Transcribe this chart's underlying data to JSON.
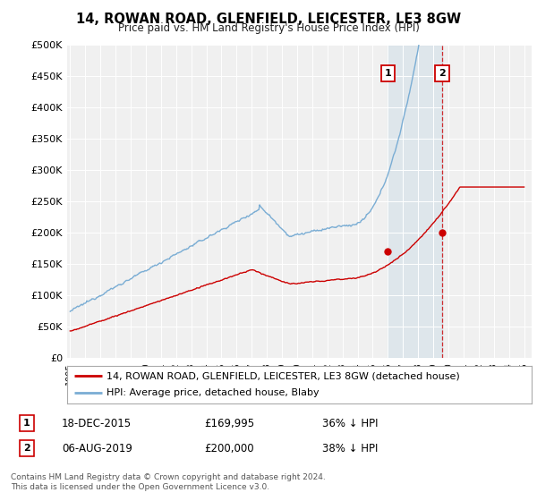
{
  "title": "14, ROWAN ROAD, GLENFIELD, LEICESTER, LE3 8GW",
  "subtitle": "Price paid vs. HM Land Registry's House Price Index (HPI)",
  "ylim": [
    0,
    500000
  ],
  "yticks": [
    0,
    50000,
    100000,
    150000,
    200000,
    250000,
    300000,
    350000,
    400000,
    450000,
    500000
  ],
  "ytick_labels": [
    "£0",
    "£50K",
    "£100K",
    "£150K",
    "£200K",
    "£250K",
    "£300K",
    "£350K",
    "£400K",
    "£450K",
    "£500K"
  ],
  "background_color": "#ffffff",
  "plot_bg_color": "#f0f0f0",
  "hpi_color": "#7aadd4",
  "price_color": "#cc0000",
  "sale1_date": "18-DEC-2015",
  "sale1_price": 169995,
  "sale1_hpi_diff": "36% ↓ HPI",
  "sale2_date": "06-AUG-2019",
  "sale2_price": 200000,
  "sale2_hpi_diff": "38% ↓ HPI",
  "legend_price_label": "14, ROWAN ROAD, GLENFIELD, LEICESTER, LE3 8GW (detached house)",
  "legend_hpi_label": "HPI: Average price, detached house, Blaby",
  "footer": "Contains HM Land Registry data © Crown copyright and database right 2024.\nThis data is licensed under the Open Government Licence v3.0.",
  "sale1_x": 2016.0,
  "sale2_x": 2019.6,
  "xlim_left": 1994.8,
  "xlim_right": 2025.5
}
